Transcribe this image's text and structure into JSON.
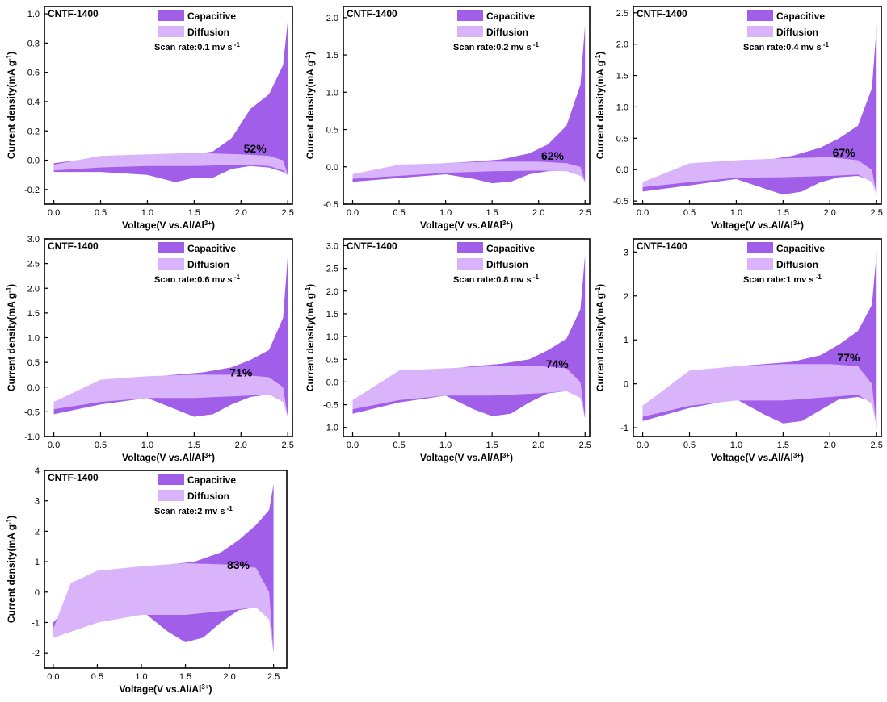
{
  "figure": {
    "colors": {
      "capacitive": "#a15ee8",
      "diffusion": "#d9b4fb",
      "frame": "#000000"
    }
  },
  "chart_data": [
    {
      "type": "area",
      "title": "CNTF-1400",
      "xlabel": "Voltage(V vs.Al/Al",
      "xlabel_sup": "3+",
      "xlabel_end": ")",
      "ylabel": "Current density(mA g",
      "ylabel_sup": "-1",
      "ylabel_end": ")",
      "xlim": [
        -0.1,
        2.55
      ],
      "ylim": [
        -0.3,
        1.05
      ],
      "xticks": [
        0.0,
        0.5,
        1.0,
        1.5,
        2.0,
        2.5
      ],
      "xtick_labels": [
        "0.0",
        "0.5",
        "1.0",
        "1.5",
        "2.0",
        "2.5"
      ],
      "yticks": [
        -0.2,
        0.0,
        0.2,
        0.4,
        0.6,
        0.8,
        1.0
      ],
      "ytick_labels": [
        "-0.2",
        "0.0",
        "0.2",
        "0.4",
        "0.6",
        "0.8",
        "1.0"
      ],
      "legend": [
        {
          "name": "Capacitive"
        },
        {
          "name": "Diffusion"
        }
      ],
      "scan_rate": "Scan rate:0.1 mv s",
      "scan_rate_sup": "-1",
      "percent_label": "52%",
      "percent_at": [
        2.15,
        0.08
      ],
      "series": [
        {
          "name": "Capacitive",
          "x": [
            0.0,
            0.5,
            1.0,
            1.3,
            1.5,
            1.7,
            1.9,
            2.1,
            2.3,
            2.45,
            2.5,
            2.5,
            2.45,
            2.3,
            2.1,
            1.9,
            1.7,
            1.5,
            1.3,
            1.0,
            0.5,
            0.0
          ],
          "y": [
            -0.02,
            0.02,
            0.03,
            0.03,
            0.04,
            0.06,
            0.15,
            0.35,
            0.45,
            0.65,
            0.95,
            -0.1,
            -0.08,
            -0.05,
            -0.04,
            -0.06,
            -0.12,
            -0.12,
            -0.15,
            -0.1,
            -0.08,
            -0.08
          ]
        },
        {
          "name": "Diffusion",
          "x": [
            0.0,
            0.5,
            1.0,
            1.5,
            2.0,
            2.3,
            2.45,
            2.5,
            2.45,
            2.3,
            2.0,
            1.5,
            1.0,
            0.5,
            0.0
          ],
          "y": [
            -0.03,
            0.03,
            0.04,
            0.05,
            0.04,
            0.03,
            0.0,
            -0.1,
            -0.07,
            -0.04,
            -0.03,
            -0.04,
            -0.04,
            -0.05,
            -0.07
          ]
        }
      ]
    },
    {
      "type": "area",
      "title": "CNTF-1400",
      "xlabel": "Voltage(V vs.Al/Al",
      "xlabel_sup": "3+",
      "xlabel_end": ")",
      "ylabel": "Current density(mA g",
      "ylabel_sup": "-1",
      "ylabel_end": ")",
      "xlim": [
        -0.1,
        2.55
      ],
      "ylim": [
        -0.5,
        2.15
      ],
      "xticks": [
        0.0,
        0.5,
        1.0,
        1.5,
        2.0,
        2.5
      ],
      "xtick_labels": [
        "0.0",
        "0.5",
        "1.0",
        "1.5",
        "2.0",
        "2.5"
      ],
      "yticks": [
        -0.5,
        0.0,
        0.5,
        1.0,
        1.5,
        2.0
      ],
      "ytick_labels": [
        "-0.5",
        "0.0",
        "0.5",
        "1.0",
        "1.5",
        "2.0"
      ],
      "legend": [
        {
          "name": "Capacitive"
        },
        {
          "name": "Diffusion"
        }
      ],
      "scan_rate": "Scan rate:0.2 mv s",
      "scan_rate_sup": "-1",
      "percent_label": "62%",
      "percent_at": [
        2.15,
        0.15
      ],
      "series": [
        {
          "name": "Capacitive",
          "x": [
            0.0,
            0.5,
            1.0,
            1.3,
            1.6,
            1.9,
            2.1,
            2.3,
            2.45,
            2.5,
            2.5,
            2.45,
            2.3,
            2.1,
            1.9,
            1.7,
            1.5,
            1.3,
            1.0,
            0.5,
            0.0
          ],
          "y": [
            -0.1,
            0.01,
            0.05,
            0.07,
            0.1,
            0.18,
            0.3,
            0.55,
            1.1,
            1.9,
            -0.2,
            -0.1,
            -0.05,
            -0.06,
            -0.1,
            -0.2,
            -0.22,
            -0.16,
            -0.1,
            -0.15,
            -0.2
          ]
        },
        {
          "name": "Diffusion",
          "x": [
            0.0,
            0.5,
            1.0,
            1.5,
            2.0,
            2.3,
            2.45,
            2.5,
            2.45,
            2.3,
            2.0,
            1.5,
            1.0,
            0.5,
            0.0
          ],
          "y": [
            -0.1,
            0.03,
            0.05,
            0.07,
            0.07,
            0.05,
            0.0,
            -0.2,
            -0.12,
            -0.06,
            -0.05,
            -0.06,
            -0.08,
            -0.12,
            -0.16
          ]
        }
      ]
    },
    {
      "type": "area",
      "title": "CNTF-1400",
      "xlabel": "Voltage(V vs.Al/Al",
      "xlabel_sup": "3+",
      "xlabel_end": ")",
      "ylabel": "Current density(mA g",
      "ylabel_sup": "-1",
      "ylabel_end": ")",
      "xlim": [
        -0.1,
        2.55
      ],
      "ylim": [
        -0.55,
        2.6
      ],
      "xticks": [
        0.0,
        0.5,
        1.0,
        1.5,
        2.0,
        2.5
      ],
      "xtick_labels": [
        "0.0",
        "0.5",
        "1.0",
        "1.5",
        "2.0",
        "2.5"
      ],
      "yticks": [
        -0.5,
        0.0,
        0.5,
        1.0,
        1.5,
        2.0,
        2.5
      ],
      "ytick_labels": [
        "-0.5",
        "0.0",
        "0.5",
        "1.0",
        "1.5",
        "2.0",
        "2.5"
      ],
      "legend": [
        {
          "name": "Capacitive"
        },
        {
          "name": "Diffusion"
        }
      ],
      "scan_rate": "Scan rate:0.4 mv s",
      "scan_rate_sup": "-1",
      "percent_label": "67%",
      "percent_at": [
        2.15,
        0.27
      ],
      "series": [
        {
          "name": "Capacitive",
          "x": [
            0.0,
            0.5,
            1.0,
            1.3,
            1.6,
            1.9,
            2.1,
            2.3,
            2.45,
            2.5,
            2.5,
            2.45,
            2.3,
            2.1,
            1.9,
            1.7,
            1.5,
            1.3,
            1.0,
            0.5,
            0.0
          ],
          "y": [
            -0.2,
            0.07,
            0.12,
            0.15,
            0.22,
            0.35,
            0.5,
            0.7,
            1.3,
            2.3,
            -0.4,
            -0.18,
            -0.1,
            -0.12,
            -0.2,
            -0.35,
            -0.4,
            -0.3,
            -0.15,
            -0.25,
            -0.35
          ]
        },
        {
          "name": "Diffusion",
          "x": [
            0.0,
            0.5,
            1.0,
            1.5,
            2.0,
            2.3,
            2.45,
            2.5,
            2.45,
            2.3,
            2.0,
            1.5,
            1.0,
            0.5,
            0.0
          ],
          "y": [
            -0.2,
            0.1,
            0.15,
            0.18,
            0.2,
            0.15,
            0.0,
            -0.4,
            -0.2,
            -0.08,
            -0.1,
            -0.12,
            -0.13,
            -0.2,
            -0.28
          ]
        }
      ]
    },
    {
      "type": "area",
      "title": "CNTF-1400",
      "xlabel": "Voltage(V vs.Al/Al",
      "xlabel_sup": "3+",
      "xlabel_end": ")",
      "ylabel": "Current density(mA g",
      "ylabel_sup": "-1",
      "ylabel_end": ")",
      "xlim": [
        -0.1,
        2.55
      ],
      "ylim": [
        -1.0,
        3.0
      ],
      "xticks": [
        0.0,
        0.5,
        1.0,
        1.5,
        2.0,
        2.5
      ],
      "xtick_labels": [
        "0.0",
        "0.5",
        "1.0",
        "1.5",
        "2.0",
        "2.5"
      ],
      "yticks": [
        -1.0,
        -0.5,
        0.0,
        0.5,
        1.0,
        1.5,
        2.0,
        2.5,
        3.0
      ],
      "ytick_labels": [
        "-1.0",
        "-0.5",
        "0.0",
        "0.5",
        "1.0",
        "1.5",
        "2.0",
        "2.5",
        "3.0"
      ],
      "legend": [
        {
          "name": "Capacitive"
        },
        {
          "name": "Diffusion"
        }
      ],
      "scan_rate": "Scan rate:0.6 mv s",
      "scan_rate_sup": "-1",
      "percent_label": "71%",
      "percent_at": [
        2.0,
        0.3
      ],
      "series": [
        {
          "name": "Capacitive",
          "x": [
            0.0,
            0.5,
            1.0,
            1.3,
            1.6,
            1.9,
            2.1,
            2.3,
            2.45,
            2.5,
            2.5,
            2.45,
            2.3,
            2.1,
            1.9,
            1.7,
            1.5,
            1.3,
            1.0,
            0.5,
            0.0
          ],
          "y": [
            -0.3,
            0.1,
            0.2,
            0.25,
            0.3,
            0.4,
            0.55,
            0.75,
            1.4,
            2.65,
            -0.6,
            -0.25,
            -0.15,
            -0.2,
            -0.35,
            -0.55,
            -0.6,
            -0.45,
            -0.22,
            -0.35,
            -0.55
          ]
        },
        {
          "name": "Diffusion",
          "x": [
            0.0,
            0.5,
            1.0,
            1.5,
            2.0,
            2.3,
            2.45,
            2.5,
            2.45,
            2.3,
            2.0,
            1.5,
            1.0,
            0.5,
            0.0
          ],
          "y": [
            -0.3,
            0.15,
            0.22,
            0.25,
            0.25,
            0.2,
            0.0,
            -0.6,
            -0.3,
            -0.15,
            -0.18,
            -0.22,
            -0.22,
            -0.3,
            -0.45
          ]
        }
      ]
    },
    {
      "type": "area",
      "title": "CNTF-1400",
      "xlabel": "Voltage(V vs.Al/Al",
      "xlabel_sup": "3+",
      "xlabel_end": ")",
      "ylabel": "Current density(mA g",
      "ylabel_sup": "-1",
      "ylabel_end": ")",
      "xlim": [
        -0.1,
        2.55
      ],
      "ylim": [
        -1.2,
        3.15
      ],
      "xticks": [
        0.0,
        0.5,
        1.0,
        1.5,
        2.0,
        2.5
      ],
      "xtick_labels": [
        "0.0",
        "0.5",
        "1.0",
        "1.5",
        "2.0",
        "2.5"
      ],
      "yticks": [
        -1.0,
        -0.5,
        0.0,
        0.5,
        1.0,
        1.5,
        2.0,
        2.5,
        3.0
      ],
      "ytick_labels": [
        "-1.0",
        "-0.5",
        "0.0",
        "0.5",
        "1.0",
        "1.5",
        "2.0",
        "2.5",
        "3.0"
      ],
      "legend": [
        {
          "name": "Capacitive"
        },
        {
          "name": "Diffusion"
        }
      ],
      "scan_rate": "Scan rate:0.8 mv s",
      "scan_rate_sup": "-1",
      "percent_label": "74%",
      "percent_at": [
        2.2,
        0.4
      ],
      "series": [
        {
          "name": "Capacitive",
          "x": [
            0.0,
            0.5,
            1.0,
            1.3,
            1.6,
            1.9,
            2.1,
            2.3,
            2.45,
            2.5,
            2.5,
            2.45,
            2.3,
            2.1,
            1.9,
            1.7,
            1.5,
            1.3,
            1.0,
            0.5,
            0.0
          ],
          "y": [
            -0.4,
            0.15,
            0.28,
            0.35,
            0.4,
            0.5,
            0.7,
            0.95,
            1.6,
            2.8,
            -0.8,
            -0.3,
            -0.2,
            -0.25,
            -0.45,
            -0.7,
            -0.75,
            -0.6,
            -0.3,
            -0.45,
            -0.7
          ]
        },
        {
          "name": "Diffusion",
          "x": [
            0.0,
            0.5,
            1.0,
            1.5,
            2.0,
            2.3,
            2.45,
            2.5,
            2.45,
            2.3,
            2.0,
            1.5,
            1.0,
            0.5,
            0.0
          ],
          "y": [
            -0.4,
            0.25,
            0.3,
            0.35,
            0.35,
            0.3,
            0.0,
            -0.8,
            -0.35,
            -0.2,
            -0.25,
            -0.3,
            -0.3,
            -0.4,
            -0.6
          ]
        }
      ]
    },
    {
      "type": "area",
      "title": "CNTF-1400",
      "xlabel": "Voltage(V vs.Al/Al",
      "xlabel_sup": "3+",
      "xlabel_end": ")",
      "ylabel": "Current density(mA g",
      "ylabel_sup": "-1",
      "ylabel_end": ")",
      "xlim": [
        -0.1,
        2.55
      ],
      "ylim": [
        -1.2,
        3.3
      ],
      "xticks": [
        0.0,
        0.5,
        1.0,
        1.5,
        2.0,
        2.5
      ],
      "xtick_labels": [
        "0.0",
        "0.5",
        "1.0",
        "1.5",
        "2.0",
        "2.5"
      ],
      "yticks": [
        -1,
        0,
        1,
        2,
        3
      ],
      "ytick_labels": [
        "-1",
        "0",
        "1",
        "2",
        "3"
      ],
      "legend": [
        {
          "name": "Capacitive"
        },
        {
          "name": "Diffusion"
        }
      ],
      "scan_rate": "Scan rate:1 mv s",
      "scan_rate_sup": "-1",
      "percent_label": "77%",
      "percent_at": [
        2.2,
        0.6
      ],
      "series": [
        {
          "name": "Capacitive",
          "x": [
            0.0,
            0.5,
            1.0,
            1.3,
            1.6,
            1.9,
            2.1,
            2.3,
            2.45,
            2.5,
            2.5,
            2.45,
            2.3,
            2.1,
            1.9,
            1.7,
            1.5,
            1.3,
            1.0,
            0.5,
            0.0
          ],
          "y": [
            -0.5,
            0.25,
            0.4,
            0.45,
            0.5,
            0.65,
            0.9,
            1.2,
            1.8,
            3.0,
            -1.0,
            -0.4,
            -0.3,
            -0.35,
            -0.6,
            -0.85,
            -0.9,
            -0.7,
            -0.35,
            -0.55,
            -0.85
          ]
        },
        {
          "name": "Diffusion",
          "x": [
            0.0,
            0.5,
            1.0,
            1.5,
            2.0,
            2.3,
            2.45,
            2.5,
            2.45,
            2.3,
            2.0,
            1.5,
            1.0,
            0.5,
            0.0
          ],
          "y": [
            -0.5,
            0.3,
            0.4,
            0.45,
            0.45,
            0.4,
            0.0,
            -1.0,
            -0.45,
            -0.25,
            -0.3,
            -0.38,
            -0.38,
            -0.5,
            -0.75
          ]
        }
      ]
    },
    {
      "type": "area",
      "title": "CNTF-1400",
      "xlabel": "Voltage(V vs.Al/Al",
      "xlabel_sup": "3+",
      "xlabel_end": ")",
      "ylabel": "Current density(mA g",
      "ylabel_sup": "-1",
      "ylabel_end": ")",
      "xlim": [
        -0.1,
        2.65
      ],
      "ylim": [
        -2.5,
        4.0
      ],
      "xticks": [
        0.0,
        0.5,
        1.0,
        1.5,
        2.0,
        2.5
      ],
      "xtick_labels": [
        "0.0",
        "0.5",
        "1.0",
        "1.5",
        "2.0",
        "2.5"
      ],
      "yticks": [
        -2,
        -1,
        0,
        1,
        2,
        3,
        4
      ],
      "ytick_labels": [
        "-2",
        "-1",
        "0",
        "1",
        "2",
        "3",
        "4"
      ],
      "legend": [
        {
          "name": "Capacitive"
        },
        {
          "name": "Diffusion"
        }
      ],
      "scan_rate": "Scan rate:2 mv s",
      "scan_rate_sup": "-1",
      "percent_label": "83%",
      "percent_at": [
        2.1,
        0.9
      ],
      "series": [
        {
          "name": "Capacitive",
          "x": [
            0.0,
            0.5,
            1.0,
            1.3,
            1.6,
            1.9,
            2.1,
            2.3,
            2.45,
            2.5,
            2.5,
            2.45,
            2.3,
            2.1,
            1.9,
            1.7,
            1.5,
            1.3,
            1.0,
            0.5,
            0.0
          ],
          "y": [
            -1.0,
            0.6,
            0.8,
            0.9,
            1.0,
            1.3,
            1.7,
            2.2,
            2.7,
            3.55,
            -2.0,
            -0.8,
            -0.5,
            -0.6,
            -1.0,
            -1.5,
            -1.65,
            -1.3,
            -0.6,
            -1.0,
            -1.5
          ]
        },
        {
          "name": "Diffusion",
          "x": [
            0.0,
            0.2,
            0.5,
            1.0,
            1.5,
            2.0,
            2.3,
            2.45,
            2.5,
            2.45,
            2.3,
            2.0,
            1.5,
            1.0,
            0.5,
            0.0
          ],
          "y": [
            -1.2,
            0.3,
            0.7,
            0.85,
            0.95,
            0.9,
            0.8,
            0.0,
            -2.0,
            -0.9,
            -0.5,
            -0.6,
            -0.75,
            -0.75,
            -1.0,
            -1.5
          ]
        }
      ]
    }
  ]
}
